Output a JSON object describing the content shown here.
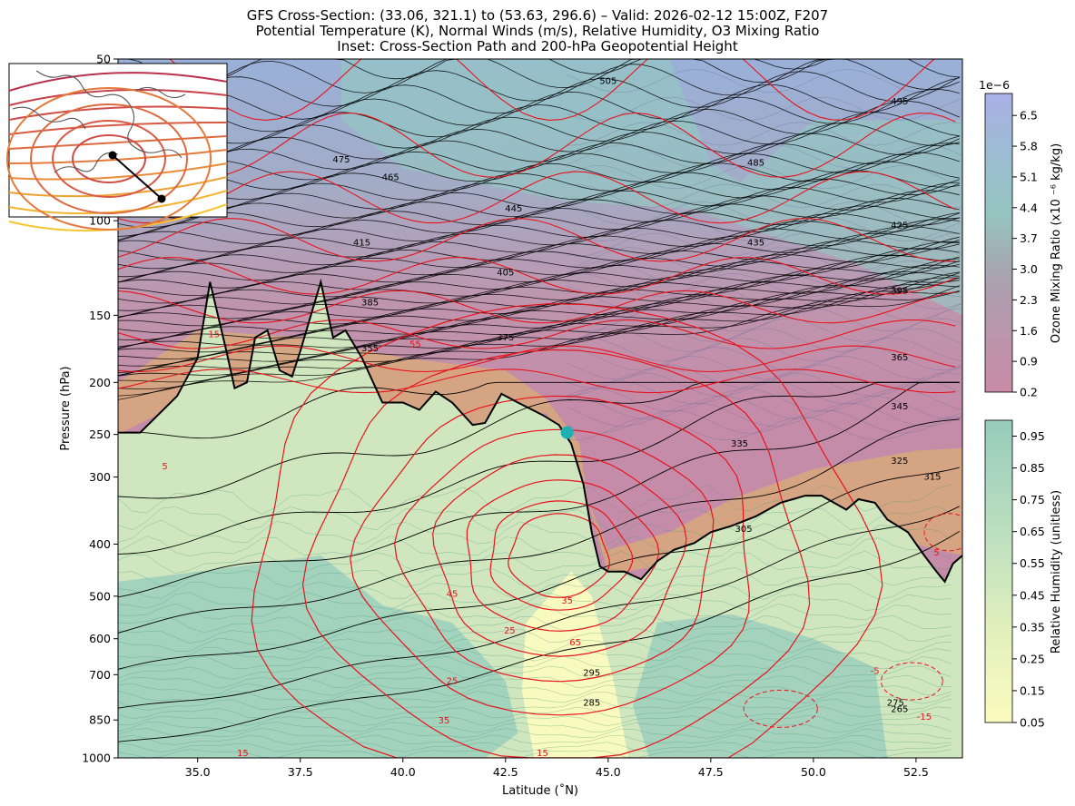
{
  "titles": [
    "GFS Cross-Section: (33.06, 321.1) to (53.63, 296.6) – Valid: 2026-02-12 15:00Z, F207",
    "Potential Temperature (K), Normal Winds (m/s), Relative Humidity, O3 Mixing Ratio",
    "Inset: Cross-Section Path and 200-hPa Geopotential Height"
  ],
  "chart_data": {
    "type": "heatmap",
    "xlabel": "Latitude (˚N)",
    "ylabel": "Pressure (hPa)",
    "xlim": [
      33.06,
      53.63
    ],
    "ylim": [
      1000,
      50
    ],
    "y_scale": "log",
    "x_ticks": [
      "35.0",
      "37.5",
      "40.0",
      "42.5",
      "45.0",
      "47.5",
      "50.0",
      "52.5"
    ],
    "y_ticks": [
      "50",
      "100",
      "150",
      "200",
      "250",
      "300",
      "400",
      "500",
      "600",
      "700",
      "850",
      "1000"
    ],
    "theta_labels": [
      "505",
      "495",
      "485",
      "475",
      "465",
      "445",
      "435",
      "425",
      "415",
      "405",
      "395",
      "385",
      "375",
      "365",
      "355",
      "345",
      "335",
      "325",
      "315",
      "305",
      "295",
      "285",
      "275",
      "265"
    ],
    "wind_labels": [
      "15",
      "25",
      "35",
      "45",
      "55",
      "65",
      "15",
      "5",
      "-5",
      "-15",
      "5",
      "25",
      "35",
      "15",
      "15"
    ],
    "tropopause": [
      [
        33.06,
        248
      ],
      [
        33.6,
        248
      ],
      [
        34.5,
        212
      ],
      [
        35.0,
        180
      ],
      [
        35.3,
        130
      ],
      [
        35.7,
        175
      ],
      [
        35.9,
        205
      ],
      [
        36.2,
        200
      ],
      [
        36.4,
        165
      ],
      [
        36.7,
        160
      ],
      [
        37.0,
        190
      ],
      [
        37.3,
        195
      ],
      [
        37.5,
        175
      ],
      [
        38.0,
        130
      ],
      [
        38.3,
        165
      ],
      [
        38.6,
        160
      ],
      [
        39.0,
        180
      ],
      [
        39.5,
        218
      ],
      [
        40.0,
        218
      ],
      [
        40.4,
        225
      ],
      [
        40.8,
        208
      ],
      [
        41.2,
        218
      ],
      [
        41.7,
        240
      ],
      [
        42.0,
        238
      ],
      [
        42.4,
        210
      ],
      [
        42.8,
        218
      ],
      [
        43.4,
        230
      ],
      [
        43.8,
        240
      ],
      [
        44.1,
        260
      ],
      [
        44.4,
        310
      ],
      [
        44.6,
        380
      ],
      [
        44.8,
        440
      ],
      [
        45.0,
        450
      ],
      [
        45.4,
        450
      ],
      [
        45.8,
        465
      ],
      [
        46.2,
        430
      ],
      [
        46.6,
        410
      ],
      [
        47.1,
        398
      ],
      [
        47.5,
        380
      ],
      [
        48.0,
        370
      ],
      [
        48.6,
        355
      ],
      [
        49.2,
        335
      ],
      [
        49.8,
        325
      ],
      [
        50.2,
        325
      ],
      [
        50.8,
        345
      ],
      [
        51.1,
        330
      ],
      [
        51.5,
        335
      ],
      [
        51.8,
        360
      ],
      [
        52.3,
        380
      ],
      [
        52.7,
        420
      ],
      [
        53.0,
        450
      ],
      [
        53.2,
        470
      ],
      [
        53.4,
        435
      ],
      [
        53.63,
        420
      ]
    ],
    "cyan_point": {
      "lat": 44.0,
      "pressure": 248
    },
    "rh_colorbar": {
      "label": "Relative Humidity (unitless)",
      "range": [
        0.05,
        1.0
      ],
      "ticks": [
        "0.95",
        "0.85",
        "0.75",
        "0.65",
        "0.55",
        "0.45",
        "0.35",
        "0.25",
        "0.15",
        "0.05"
      ]
    },
    "o3_colorbar": {
      "label": "Ozone Mixing Ratio (x10 ⁻⁶ kg/kg)",
      "multiplier": "1e−6",
      "range": [
        0.2,
        7.0
      ],
      "ticks": [
        "6.5",
        "5.8",
        "5.1",
        "4.4",
        "3.7",
        "3.0",
        "2.3",
        "1.6",
        "0.9",
        "0.2"
      ]
    },
    "inset_path": {
      "start": [
        33.06,
        321.1
      ],
      "end": [
        53.63,
        296.6
      ]
    }
  },
  "colors": {
    "theta": "#000000",
    "wind": "#e8141c",
    "rh_low": "#fbfbbf",
    "rh_high": "#99cdbd",
    "o3_low": "#c88aa5",
    "o3_high": "#aab2e8",
    "tropopause_band": "#d9aa7a",
    "cyan_point": "#1fb0b4"
  }
}
